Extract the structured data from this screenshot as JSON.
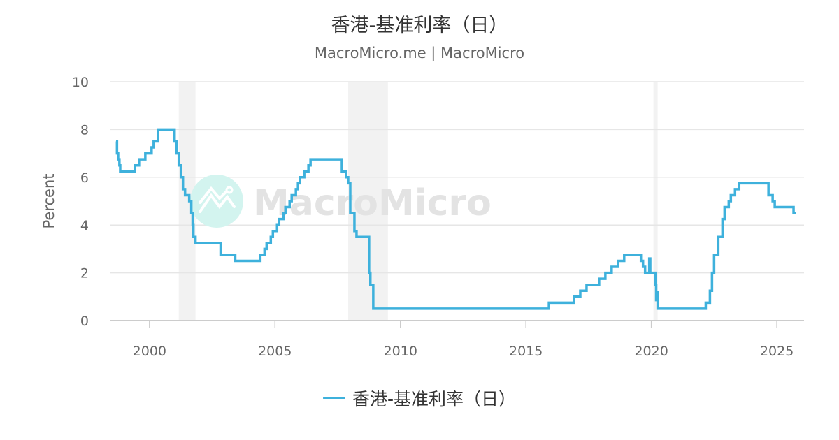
{
  "header": {
    "title": "香港-基准利率（日）",
    "subtitle": "MacroMicro.me | MacroMicro"
  },
  "watermark": {
    "text": "MacroMicro"
  },
  "colors": {
    "series": "#3eb1dc",
    "shade": "#f2f2f2",
    "grid": "#e6e6e6",
    "watermark_circle": "#d3f4ef",
    "watermark_text": "#e3e3e3"
  },
  "chart_data": {
    "type": "line",
    "step": true,
    "title": "香港-基准利率（日）",
    "ylabel": "Percent",
    "xlabel": "",
    "ylim": [
      0,
      10
    ],
    "xlim": [
      "1998-06",
      "2026-02"
    ],
    "yticks": [
      "0",
      "2",
      "4",
      "6",
      "8",
      "10"
    ],
    "xticks": [
      "2000",
      "2005",
      "2010",
      "2015",
      "2020",
      "2025"
    ],
    "grid": true,
    "legend_position": "bottom",
    "shaded_periods": [
      [
        "2001-03",
        "2001-11"
      ],
      [
        "2007-12",
        "2009-07"
      ],
      [
        "2020-02",
        "2020-04"
      ]
    ],
    "series": [
      {
        "name": "香港-基准利率（日）",
        "points": [
          [
            "1998-09",
            7.5
          ],
          [
            "1998-09-15",
            7.0
          ],
          [
            "1998-10",
            6.75
          ],
          [
            "1998-10-20",
            6.5
          ],
          [
            "1998-11",
            6.25
          ],
          [
            "1999-06",
            6.5
          ],
          [
            "1999-08",
            6.75
          ],
          [
            "1999-11",
            7.0
          ],
          [
            "2000-02",
            7.25
          ],
          [
            "2000-03",
            7.5
          ],
          [
            "2000-05",
            8.0
          ],
          [
            "2001-01",
            7.5
          ],
          [
            "2001-02",
            7.0
          ],
          [
            "2001-03",
            6.5
          ],
          [
            "2001-04",
            6.0
          ],
          [
            "2001-05",
            5.5
          ],
          [
            "2001-06",
            5.25
          ],
          [
            "2001-08",
            5.0
          ],
          [
            "2001-09",
            4.5
          ],
          [
            "2001-09-20",
            4.0
          ],
          [
            "2001-10",
            3.5
          ],
          [
            "2001-11",
            3.25
          ],
          [
            "2002-11",
            2.75
          ],
          [
            "2003-06",
            2.5
          ],
          [
            "2004-06",
            2.75
          ],
          [
            "2004-08",
            3.0
          ],
          [
            "2004-09",
            3.25
          ],
          [
            "2004-11",
            3.5
          ],
          [
            "2004-12",
            3.75
          ],
          [
            "2005-02",
            4.0
          ],
          [
            "2005-03",
            4.25
          ],
          [
            "2005-05",
            4.5
          ],
          [
            "2005-06",
            4.75
          ],
          [
            "2005-08",
            5.0
          ],
          [
            "2005-09",
            5.25
          ],
          [
            "2005-11",
            5.5
          ],
          [
            "2005-12",
            5.75
          ],
          [
            "2006-01",
            6.0
          ],
          [
            "2006-03",
            6.25
          ],
          [
            "2006-05",
            6.5
          ],
          [
            "2006-06",
            6.75
          ],
          [
            "2007-09",
            6.25
          ],
          [
            "2007-11",
            6.0
          ],
          [
            "2007-12",
            5.75
          ],
          [
            "2008-01",
            4.5
          ],
          [
            "2008-03",
            3.75
          ],
          [
            "2008-04",
            3.5
          ],
          [
            "2008-10",
            2.0
          ],
          [
            "2008-10-20",
            1.5
          ],
          [
            "2008-12",
            0.5
          ],
          [
            "2015-12",
            0.75
          ],
          [
            "2016-12",
            1.0
          ],
          [
            "2017-03",
            1.25
          ],
          [
            "2017-06",
            1.5
          ],
          [
            "2017-12",
            1.75
          ],
          [
            "2018-03",
            2.0
          ],
          [
            "2018-06",
            2.25
          ],
          [
            "2018-09",
            2.5
          ],
          [
            "2018-12",
            2.75
          ],
          [
            "2019-08",
            2.5
          ],
          [
            "2019-09",
            2.25
          ],
          [
            "2019-10",
            2.0
          ],
          [
            "2019-12",
            2.6
          ],
          [
            "2019-12-15",
            2.0
          ],
          [
            "2020-03",
            1.5
          ],
          [
            "2020-03-10",
            0.86
          ],
          [
            "2020-03-20",
            1.2
          ],
          [
            "2020-04",
            0.5
          ],
          [
            "2022-03",
            0.75
          ],
          [
            "2022-05",
            1.25
          ],
          [
            "2022-06",
            2.0
          ],
          [
            "2022-07",
            2.75
          ],
          [
            "2022-09",
            3.5
          ],
          [
            "2022-11",
            4.25
          ],
          [
            "2022-12",
            4.75
          ],
          [
            "2023-02",
            5.0
          ],
          [
            "2023-03",
            5.25
          ],
          [
            "2023-05",
            5.5
          ],
          [
            "2023-07",
            5.75
          ],
          [
            "2024-09",
            5.25
          ],
          [
            "2024-11",
            5.0
          ],
          [
            "2024-12",
            4.75
          ],
          [
            "2025-09",
            4.5
          ],
          [
            "2025-10",
            4.5
          ]
        ]
      }
    ]
  }
}
